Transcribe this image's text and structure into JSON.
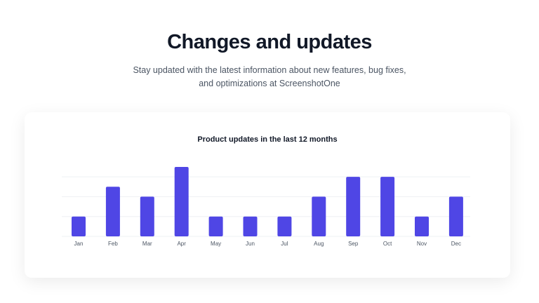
{
  "header": {
    "title": "Changes and updates",
    "subtitle": "Stay updated with the latest information about new features, bug fixes, and optimizations at ScreenshotOne"
  },
  "chart_data": {
    "type": "bar",
    "title": "Product updates in the last 12 months",
    "categories": [
      "Jan",
      "Feb",
      "Mar",
      "Apr",
      "May",
      "Jun",
      "Jul",
      "Aug",
      "Sep",
      "Oct",
      "Nov",
      "Dec"
    ],
    "values": [
      2,
      5,
      4,
      7,
      2,
      2,
      2,
      4,
      6,
      6,
      2,
      4
    ],
    "color": "#4f46e5",
    "ylim": [
      0,
      7
    ],
    "yticks": [
      0,
      2,
      4,
      6
    ],
    "grid": true
  }
}
